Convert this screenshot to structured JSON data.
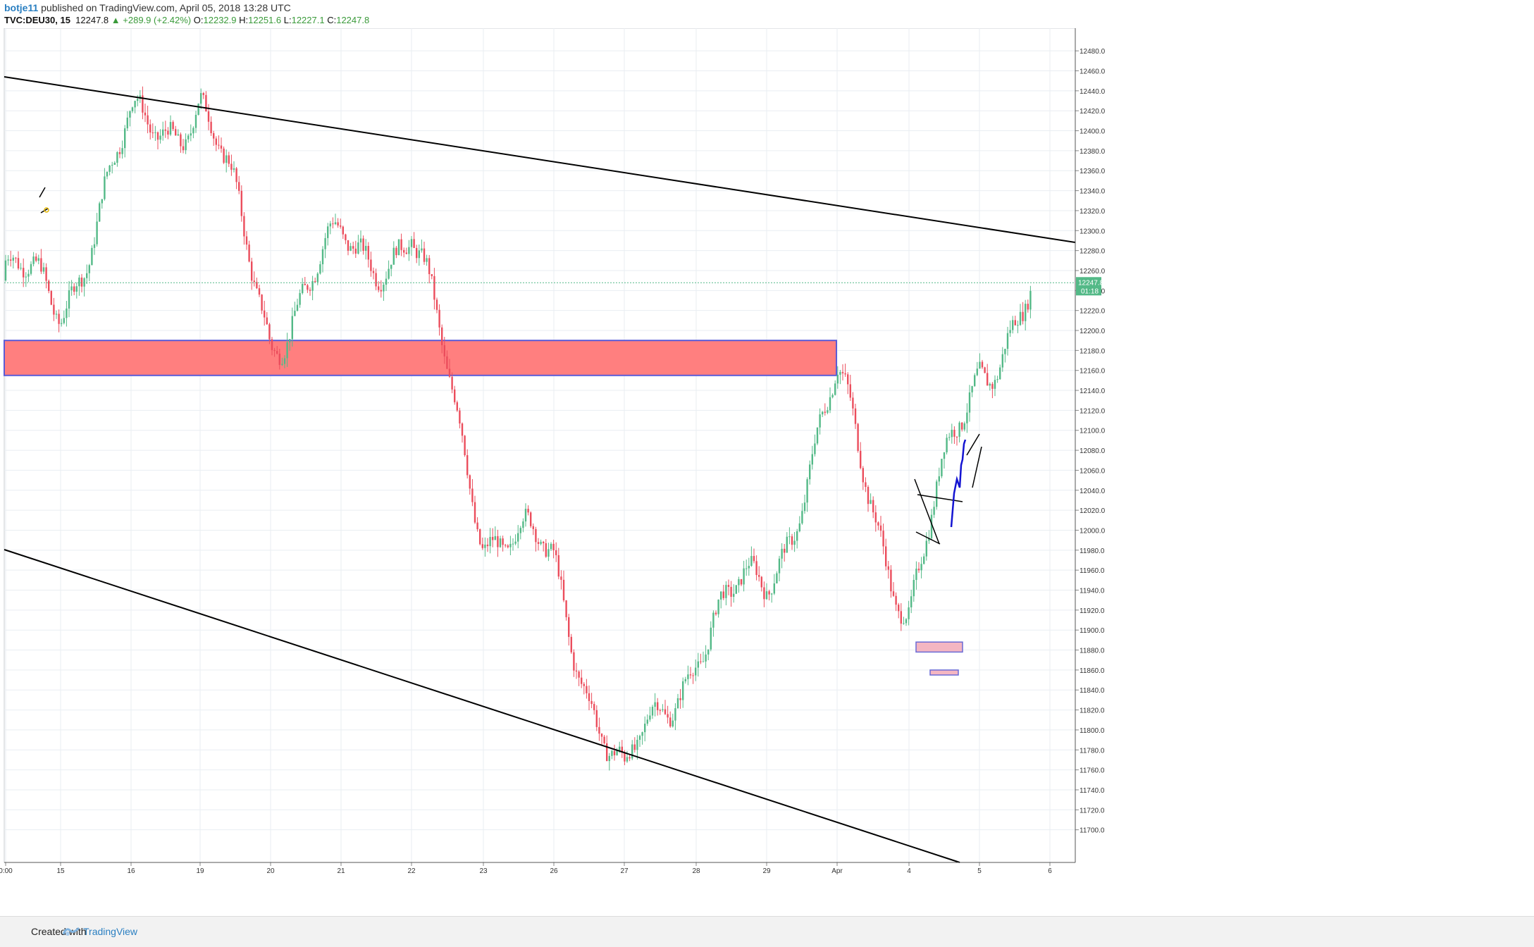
{
  "header": {
    "user": "botje11",
    "published_text": "published on TradingView.com, April 05, 2018 13:28 UTC",
    "symbol": "TVC:DEU30, 15",
    "last": "12247.8",
    "change": "+289.9 (+2.42%)",
    "open_label": "O:",
    "open": "12232.9",
    "high_label": "H:",
    "high": "12251.6",
    "low_label": "L:",
    "low": "12227.1",
    "close_label": "C:",
    "close": "12247.8"
  },
  "footer": {
    "created_with": "Created with",
    "brand": "TradingView"
  },
  "colors": {
    "up": "#53b987",
    "down": "#eb4d5c",
    "zone": "#ff7f7f",
    "zone_border": "#5b5bd6",
    "grid": "#e9eef2",
    "price_line": "#53b987"
  },
  "chart_data": {
    "type": "candlestick",
    "interval": "15",
    "ylim": [
      11680,
      12490
    ],
    "y_ticks": [
      11700,
      11720,
      11740,
      11760,
      11780,
      11800,
      11820,
      11840,
      11860,
      11880,
      11900,
      11920,
      11940,
      11960,
      11980,
      12000,
      12020,
      12040,
      12060,
      12080,
      12100,
      12120,
      12140,
      12160,
      12180,
      12200,
      12220,
      12240,
      12260,
      12280,
      12300,
      12320,
      12340,
      12360,
      12380,
      12400,
      12420,
      12440,
      12460,
      12480
    ],
    "x_labels": [
      "0:00",
      "15",
      "16",
      "19",
      "20",
      "21",
      "22",
      "23",
      "26",
      "27",
      "28",
      "29",
      "Apr",
      "4",
      "5",
      "6"
    ],
    "current_price": {
      "value": 12247.8,
      "label": "12247.8",
      "countdown": "01:18"
    },
    "key_closes": [
      {
        "x": "0:00",
        "y": 12250
      },
      {
        "x": "15",
        "y": 12230
      },
      {
        "x": "16",
        "y": 12395
      },
      {
        "x": "19",
        "y": 12430
      },
      {
        "x": "20",
        "y": 12200
      },
      {
        "x": "21",
        "y": 12280
      },
      {
        "x": "22",
        "y": 12290
      },
      {
        "x": "23",
        "y": 12010
      },
      {
        "x": "26",
        "y": 11960
      },
      {
        "x": "27",
        "y": 11740
      },
      {
        "x": "28",
        "y": 11890
      },
      {
        "x": "29",
        "y": 11950
      },
      {
        "x": "Apr",
        "y": 12140
      },
      {
        "x": "4",
        "y": 11920
      },
      {
        "x": "5",
        "y": 12170
      },
      {
        "x": "6",
        "y": 12247.8
      }
    ],
    "trendlines": [
      {
        "name": "upper-trendline"
      },
      {
        "name": "lower-trendline"
      }
    ],
    "zones": [
      {
        "name": "resistance-zone",
        "from": 12155,
        "to": 12190
      }
    ]
  }
}
